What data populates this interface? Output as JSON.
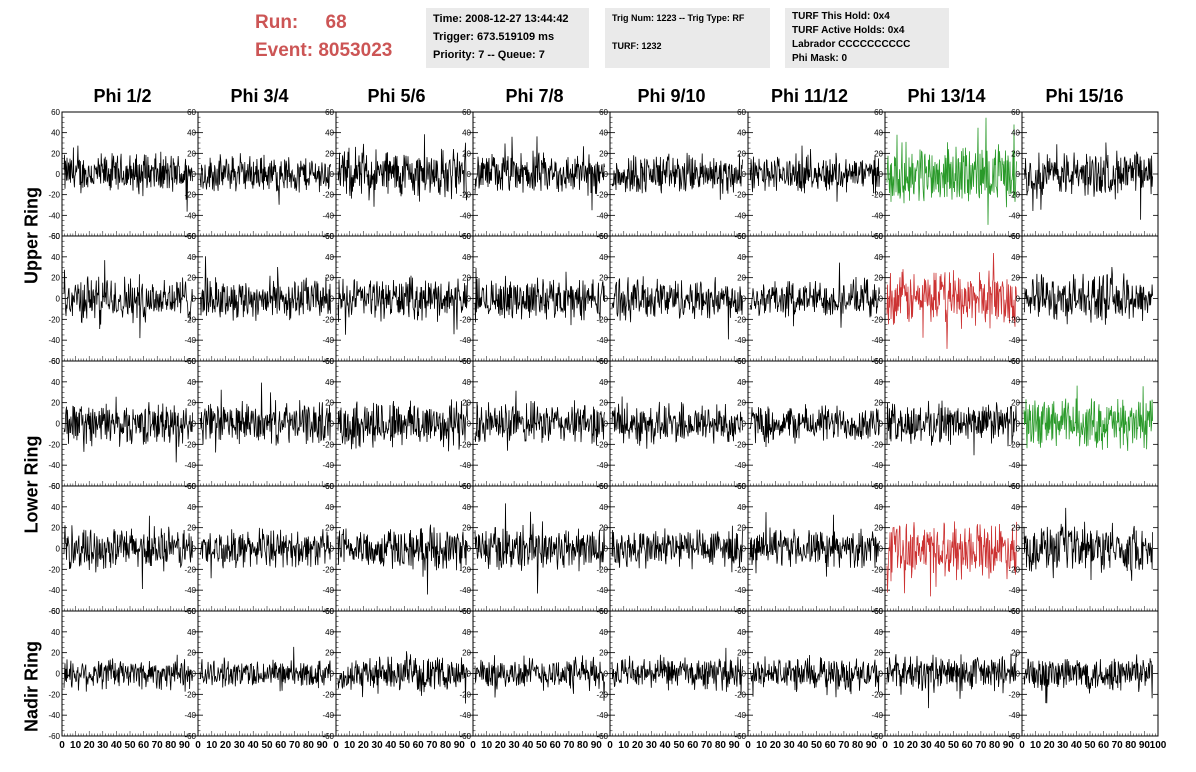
{
  "header": {
    "run_label": "Run:",
    "run_value": "68",
    "event_label": "Event:",
    "event_value": "8053023"
  },
  "info1": {
    "time": "Time: 2008-12-27 13:44:42",
    "trigger": "Trigger: 673.519109 ms",
    "priority": "Priority: 7 -- Queue: 7"
  },
  "info2": {
    "trig": "Trig Num: 1223 -- Trig Type: RF",
    "turf": "TURF: 1232"
  },
  "info3": {
    "this_hold": "TURF This Hold: 0x4",
    "active_holds": "TURF Active Holds: 0x4",
    "labrador": "Labrador CCCCCCCCCC",
    "phi_mask": "Phi Mask: 0"
  },
  "columns": [
    "Phi 1/2",
    "Phi 3/4",
    "Phi 5/6",
    "Phi 7/8",
    "Phi 9/10",
    "Phi 11/12",
    "Phi 13/14",
    "Phi 15/16"
  ],
  "rows": [
    "Upper Ring",
    "Lower Ring",
    "Nadir Ring"
  ],
  "colors": {
    "trace": "#000000",
    "green": "#2a9a2a",
    "red": "#cc3333",
    "title_red": "#cc5555",
    "box_bg": "#eaeaea"
  },
  "chart_data": {
    "type": "line",
    "description_rows": 5,
    "description_cols": 8,
    "xlim": [
      0,
      100
    ],
    "ylim": [
      -60,
      60
    ],
    "x_ticks": [
      "0",
      "10",
      "20",
      "30",
      "40",
      "50",
      "60",
      "70",
      "80",
      "90",
      "100"
    ],
    "y_ticks": [
      "60",
      "40",
      "20",
      "0",
      "-20",
      "-40",
      "-60"
    ],
    "highlighted_traces": [
      {
        "row": 0,
        "col": 6,
        "color": "green"
      },
      {
        "row": 1,
        "col": 6,
        "color": "red"
      },
      {
        "row": 2,
        "col": 7,
        "color": "green"
      },
      {
        "row": 3,
        "col": 6,
        "color": "red"
      }
    ],
    "series_amplitude": [
      [
        18,
        16,
        22,
        18,
        18,
        16,
        26,
        20
      ],
      [
        20,
        18,
        18,
        18,
        18,
        16,
        24,
        20
      ],
      [
        18,
        18,
        22,
        18,
        18,
        16,
        18,
        22
      ],
      [
        18,
        16,
        18,
        20,
        18,
        16,
        24,
        20
      ],
      [
        14,
        12,
        14,
        14,
        14,
        14,
        16,
        16
      ]
    ]
  }
}
